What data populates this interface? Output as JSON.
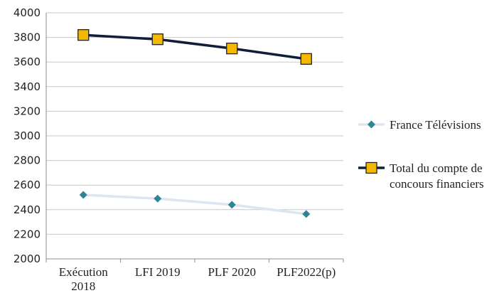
{
  "chart_data": {
    "type": "line",
    "title": "",
    "xlabel": "",
    "ylabel": "",
    "categories": [
      [
        "Exécution",
        "2018"
      ],
      [
        "LFI 2019"
      ],
      [
        "PLF 2020"
      ],
      [
        "PLF2022(p)"
      ]
    ],
    "ylim": [
      2000,
      4000
    ],
    "yticks": [
      2000,
      2200,
      2400,
      2600,
      2800,
      3000,
      3200,
      3400,
      3600,
      3800,
      4000
    ],
    "grid": true,
    "legend_position": "right",
    "series": [
      {
        "name": "France Télévisions",
        "values": [
          2520,
          2490,
          2440,
          2365
        ],
        "line_color": "#dde6f0",
        "marker": "diamond",
        "marker_color": "#2e8596"
      },
      {
        "name_lines": [
          "Total du compte de",
          "concours financiers"
        ],
        "values": [
          3820,
          3785,
          3710,
          3625
        ],
        "line_color": "#0f1f3a",
        "marker": "square",
        "marker_color": "#f5b800"
      }
    ]
  }
}
